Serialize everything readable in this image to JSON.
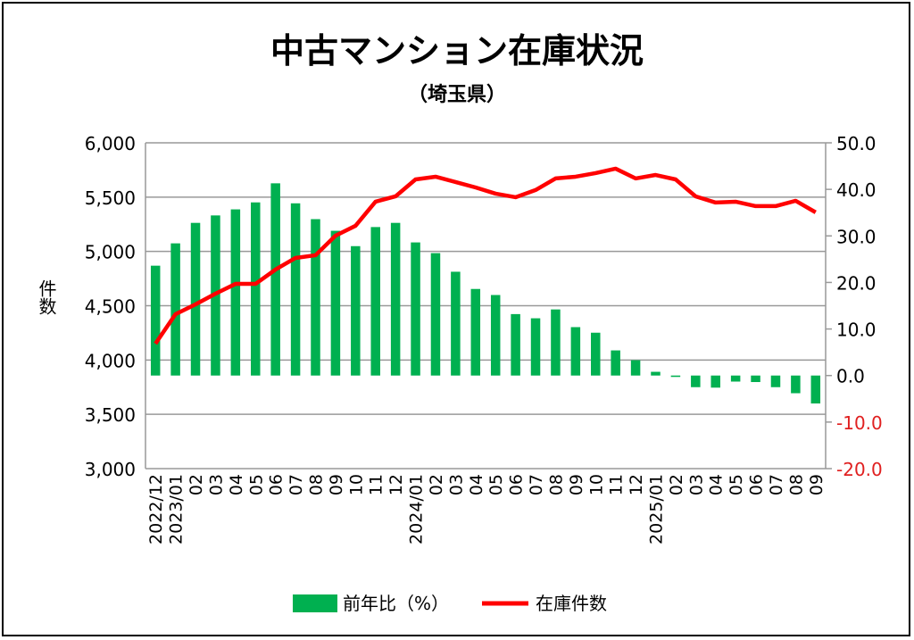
{
  "chart_data": {
    "type": "bar+line",
    "title": "中古マンション在庫状況",
    "subtitle": "（埼玉県）",
    "ylabel": "件数",
    "ylim": [
      3000,
      6000
    ],
    "y2lim": [
      -20,
      50
    ],
    "yticks": [
      "3,000",
      "3,500",
      "4,000",
      "4,500",
      "5,000",
      "5,500",
      "6,000"
    ],
    "y2ticks": [
      "-20.0",
      "-10.0",
      "0.0",
      "10.0",
      "20.0",
      "30.0",
      "40.0",
      "50.0"
    ],
    "categories": [
      "2022/12",
      "2023/01",
      "02",
      "03",
      "04",
      "05",
      "06",
      "07",
      "08",
      "09",
      "10",
      "11",
      "12",
      "2024/01",
      "02",
      "03",
      "04",
      "05",
      "06",
      "07",
      "08",
      "09",
      "10",
      "11",
      "12",
      "2025/01",
      "02",
      "03",
      "04",
      "05",
      "06",
      "07",
      "08",
      "09"
    ],
    "series": [
      {
        "name": "前年比（%）",
        "type": "bar",
        "axis": "right",
        "color": "#00b050",
        "values": [
          23.6,
          28.4,
          32.8,
          34.4,
          35.7,
          37.2,
          41.3,
          37.0,
          33.6,
          31.1,
          27.8,
          31.9,
          32.8,
          28.6,
          26.3,
          22.3,
          18.6,
          17.3,
          13.2,
          12.3,
          14.2,
          10.4,
          9.2,
          5.4,
          3.3,
          0.8,
          -0.3,
          -2.5,
          -2.6,
          -1.3,
          -1.4,
          -2.5,
          -3.8,
          -6.0
        ]
      },
      {
        "name": "在庫件数",
        "type": "line",
        "axis": "left",
        "color": "#ff0000",
        "values": [
          4151,
          4422,
          4512,
          4611,
          4701,
          4701,
          4833,
          4940,
          4965,
          5145,
          5236,
          5458,
          5507,
          5663,
          5688,
          5639,
          5589,
          5532,
          5499,
          5565,
          5672,
          5688,
          5721,
          5762,
          5672,
          5704,
          5663,
          5507,
          5450,
          5458,
          5417,
          5417,
          5466,
          5360
        ]
      }
    ],
    "legend": "bottom",
    "grid": true,
    "negative_tick_color": "#e02020"
  }
}
